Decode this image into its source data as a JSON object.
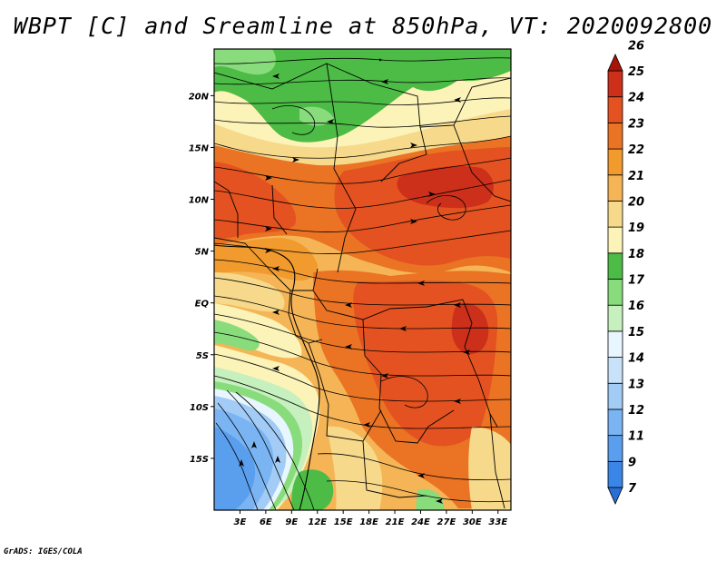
{
  "title": "WBPT [C] and Sreamline at 850hPa, VT: 2020092800",
  "footer": "GrADS: IGES/COLA",
  "map": {
    "variable": "WBPT [C]",
    "overlay": "Streamline",
    "level": "850hPa",
    "valid_time": "2020092800",
    "lat_range": [
      -20,
      24.5
    ],
    "lon_range": [
      0,
      34.5
    ],
    "lat_ticks": [
      {
        "value": 20,
        "label": "20N"
      },
      {
        "value": 15,
        "label": "15N"
      },
      {
        "value": 10,
        "label": "10N"
      },
      {
        "value": 5,
        "label": "5N"
      },
      {
        "value": 0,
        "label": "EQ"
      },
      {
        "value": -5,
        "label": "5S"
      },
      {
        "value": -10,
        "label": "10S"
      },
      {
        "value": -15,
        "label": "15S"
      }
    ],
    "lon_ticks": [
      {
        "value": 3,
        "label": "3E"
      },
      {
        "value": 6,
        "label": "6E"
      },
      {
        "value": 9,
        "label": "9E"
      },
      {
        "value": 12,
        "label": "12E"
      },
      {
        "value": 15,
        "label": "15E"
      },
      {
        "value": 18,
        "label": "18E"
      },
      {
        "value": 21,
        "label": "21E"
      },
      {
        "value": 24,
        "label": "24E"
      },
      {
        "value": 27,
        "label": "27E"
      },
      {
        "value": 30,
        "label": "30E"
      },
      {
        "value": 33,
        "label": "33E"
      }
    ]
  },
  "colorbar": {
    "levels": [
      "7",
      "9",
      "11",
      "12",
      "13",
      "14",
      "15",
      "16",
      "17",
      "18",
      "19",
      "20",
      "21",
      "22",
      "23",
      "24",
      "25",
      "26"
    ],
    "colors": [
      "#2a6fd6",
      "#3a86e6",
      "#5a9eee",
      "#7ab4f2",
      "#a2cbf6",
      "#c8e2fa",
      "#e8f6ff",
      "#c6f0be",
      "#88dc7c",
      "#4cbc46",
      "#fcf3b8",
      "#f7d98c",
      "#f5b556",
      "#f19a2e",
      "#ea7324",
      "#e35220",
      "#cc2f1a",
      "#a91308"
    ]
  }
}
